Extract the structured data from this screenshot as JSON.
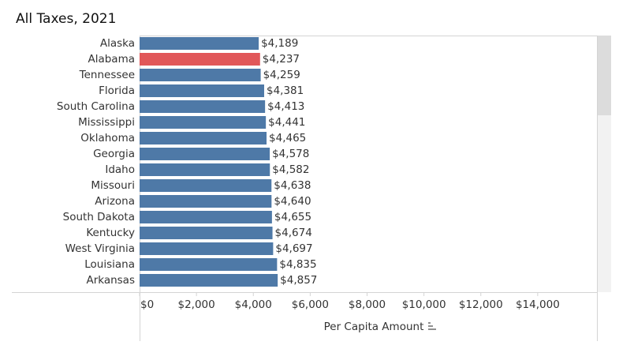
{
  "chart_data": {
    "type": "barh",
    "title": "All Taxes, 2021",
    "categories": [
      "Alaska",
      "Alabama",
      "Tennessee",
      "Florida",
      "South Carolina",
      "Mississippi",
      "Oklahoma",
      "Georgia",
      "Idaho",
      "Missouri",
      "Arizona",
      "South Dakota",
      "Kentucky",
      "West Virginia",
      "Louisiana",
      "Arkansas"
    ],
    "values": [
      4189,
      4237,
      4259,
      4381,
      4413,
      4441,
      4465,
      4578,
      4582,
      4638,
      4640,
      4655,
      4674,
      4697,
      4835,
      4857
    ],
    "value_labels": [
      "$4,189",
      "$4,237",
      "$4,259",
      "$4,381",
      "$4,413",
      "$4,441",
      "$4,465",
      "$4,578",
      "$4,582",
      "$4,638",
      "$4,640",
      "$4,655",
      "$4,674",
      "$4,697",
      "$4,835",
      "$4,857"
    ],
    "colors": [
      "#4e79a7",
      "#e15759",
      "#4e79a7",
      "#4e79a7",
      "#4e79a7",
      "#4e79a7",
      "#4e79a7",
      "#4e79a7",
      "#4e79a7",
      "#4e79a7",
      "#4e79a7",
      "#4e79a7",
      "#4e79a7",
      "#4e79a7",
      "#4e79a7",
      "#4e79a7"
    ],
    "xlabel": "Per Capita Amount",
    "xlim": [
      0,
      16000
    ],
    "xticks": [
      {
        "value": 0,
        "label": "$0"
      },
      {
        "value": 2000,
        "label": "$2,000"
      },
      {
        "value": 4000,
        "label": "$4,000"
      },
      {
        "value": 6000,
        "label": "$6,000"
      },
      {
        "value": 8000,
        "label": "$8,000"
      },
      {
        "value": 10000,
        "label": "$10,000"
      },
      {
        "value": 12000,
        "label": "$12,000"
      },
      {
        "value": 14000,
        "label": "$14,000"
      }
    ]
  }
}
